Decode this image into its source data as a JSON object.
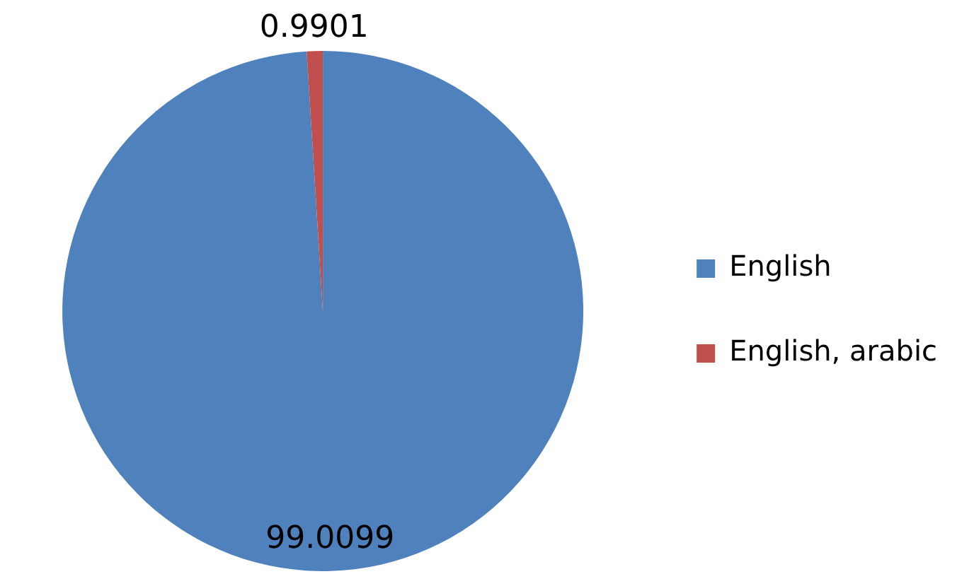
{
  "chart_data": {
    "type": "pie",
    "categories": [
      "English",
      "English, arabic"
    ],
    "values": [
      99.0099,
      0.9901
    ],
    "colors": [
      "#4f81bd",
      "#c0504d"
    ],
    "legend": "right",
    "data_labels": true
  }
}
